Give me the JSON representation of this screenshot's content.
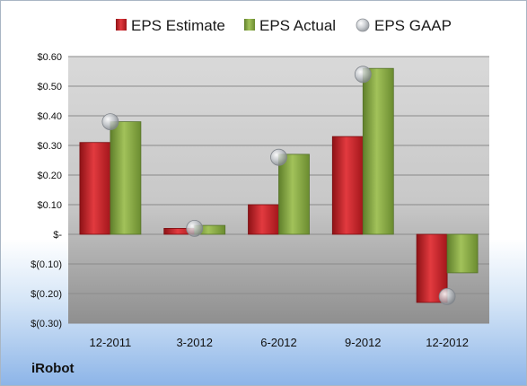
{
  "company": "iRobot",
  "chart_data": {
    "type": "bar",
    "categories": [
      "12-2011",
      "3-2012",
      "6-2012",
      "9-2012",
      "12-2012"
    ],
    "series": [
      {
        "name": "EPS Estimate",
        "kind": "bar",
        "color": "#c0262c",
        "values": [
          0.31,
          0.02,
          0.1,
          0.33,
          -0.23
        ]
      },
      {
        "name": "EPS Actual",
        "kind": "bar",
        "color": "#86a844",
        "values": [
          0.38,
          0.03,
          0.27,
          0.56,
          -0.13
        ]
      },
      {
        "name": "EPS GAAP",
        "kind": "marker",
        "color": "#b9bec4",
        "values": [
          0.38,
          0.02,
          0.26,
          0.54,
          -0.21
        ]
      }
    ],
    "ylim": [
      -0.3,
      0.6
    ],
    "y_ticks": [
      {
        "value": 0.6,
        "label": "$0.60"
      },
      {
        "value": 0.5,
        "label": "$0.50"
      },
      {
        "value": 0.4,
        "label": "$0.40"
      },
      {
        "value": 0.3,
        "label": "$0.30"
      },
      {
        "value": 0.2,
        "label": "$0.20"
      },
      {
        "value": 0.1,
        "label": "$0.10"
      },
      {
        "value": 0.0,
        "label": "$-"
      },
      {
        "value": -0.1,
        "label": "$(0.10)"
      },
      {
        "value": -0.2,
        "label": "$(0.20)"
      },
      {
        "value": -0.3,
        "label": "$(0.30)"
      }
    ],
    "grid": true,
    "legend_position": "top"
  }
}
